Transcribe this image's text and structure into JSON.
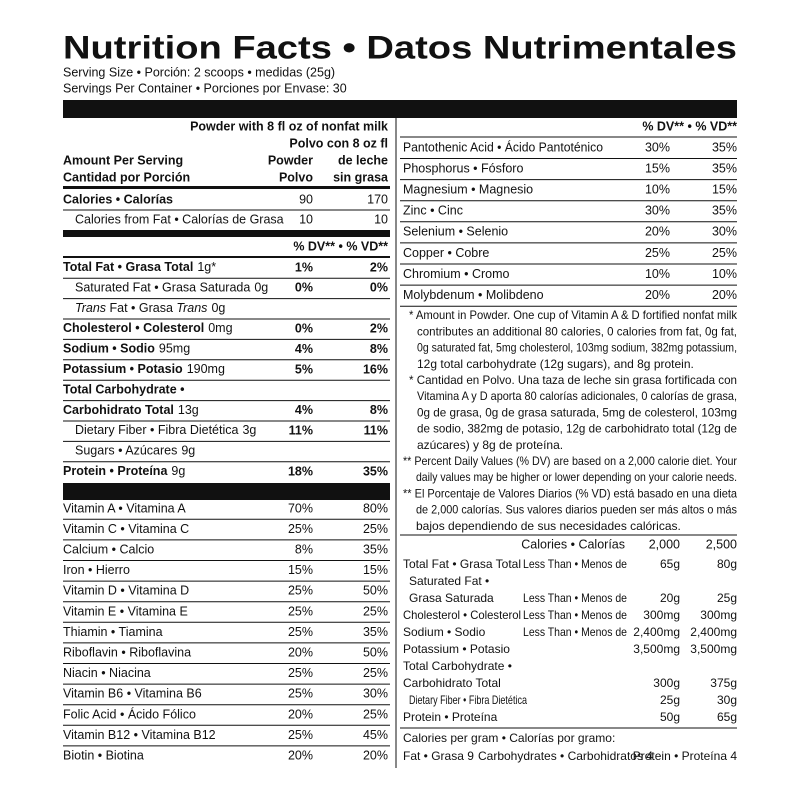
{
  "header": {
    "title": "Nutrition Facts • Datos Nutrimentales",
    "serving_size": "Serving Size • Porción: 2 scoops • medidas (25g)",
    "servings_per_container": "Servings Per Container • Porciones por Envase: 30"
  },
  "left": {
    "column_header": [
      "Powder with 8 fl oz of nonfat milk",
      "Polvo con 8 oz fl"
    ],
    "amount_label": [
      "Amount Per Serving",
      "Cantidad por Porción"
    ],
    "col1": [
      "Powder",
      "Polvo"
    ],
    "col2": [
      "de leche",
      "sin grasa"
    ],
    "calories": [
      {
        "label": "Calories • Calorías",
        "v1": "90",
        "v2": "170"
      },
      {
        "label": "Calories from Fat • Calorías de Grasa",
        "v1": "10",
        "v2": "10"
      }
    ],
    "dv_header": "% DV** • % VD**",
    "nutrients": [
      {
        "label": "Total Fat • Grasa Total",
        "amount": "1g*",
        "v1": "1%",
        "v2": "2%"
      },
      {
        "label": "Saturated Fat • Grasa Saturada",
        "amount": "0g",
        "v1": "0%",
        "v2": "0%"
      },
      {
        "label_parts": [
          "Trans",
          " Fat • Grasa ",
          "Trans"
        ],
        "amount": "0g"
      },
      {
        "label": "Cholesterol • Colesterol",
        "amount": "0mg",
        "v1": "0%",
        "v2": "2%"
      },
      {
        "label": "Sodium • Sodio",
        "amount": "95mg",
        "v1": "4%",
        "v2": "8%"
      },
      {
        "label": "Potassium • Potasio",
        "amount": "190mg",
        "v1": "5%",
        "v2": "16%"
      },
      {
        "label": [
          "Total Carbohydrate •",
          "Carbohidrato Total"
        ],
        "amount": "13g",
        "v1": "4%",
        "v2": "8%"
      },
      {
        "label": "Dietary Fiber • Fibra Dietética",
        "amount": "3g",
        "v1": "11%",
        "v2": "11%"
      },
      {
        "label": "Sugars • Azúcares",
        "amount": "9g"
      },
      {
        "label": "Protein • Proteína",
        "amount": "9g",
        "v1": "18%",
        "v2": "35%"
      }
    ],
    "vitamins": [
      {
        "label": "Vitamin A • Vitamina A",
        "v1": "70%",
        "v2": "80%"
      },
      {
        "label": "Vitamin C • Vitamina C",
        "v1": "25%",
        "v2": "25%"
      },
      {
        "label": "Calcium • Calcio",
        "v1": "8%",
        "v2": "35%"
      },
      {
        "label": "Iron • Hierro",
        "v1": "15%",
        "v2": "15%"
      },
      {
        "label": "Vitamin D • Vitamina D",
        "v1": "25%",
        "v2": "50%"
      },
      {
        "label": "Vitamin E • Vitamina E",
        "v1": "25%",
        "v2": "25%"
      },
      {
        "label": "Thiamin • Tiamina",
        "v1": "25%",
        "v2": "35%"
      },
      {
        "label": "Riboflavin • Riboflavina",
        "v1": "20%",
        "v2": "50%"
      },
      {
        "label": "Niacin • Niacina",
        "v1": "25%",
        "v2": "25%"
      },
      {
        "label": "Vitamin B6 • Vitamina B6",
        "v1": "25%",
        "v2": "30%"
      },
      {
        "label": "Folic Acid • Ácido Fólico",
        "v1": "20%",
        "v2": "25%"
      },
      {
        "label": "Vitamin B12 • Vitamina B12",
        "v1": "25%",
        "v2": "45%"
      },
      {
        "label": "Biotin • Biotina",
        "v1": "20%",
        "v2": "20%"
      }
    ]
  },
  "right": {
    "dv_header": "% DV** • % VD**",
    "minerals": [
      {
        "label": "Pantothenic Acid • Ácido Pantoténico",
        "v1": "30%",
        "v2": "35%"
      },
      {
        "label": "Phosphorus • Fósforo",
        "v1": "15%",
        "v2": "35%"
      },
      {
        "label": "Magnesium • Magnesio",
        "v1": "10%",
        "v2": "15%"
      },
      {
        "label": "Zinc • Cinc",
        "v1": "30%",
        "v2": "35%"
      },
      {
        "label": "Selenium • Selenio",
        "v1": "20%",
        "v2": "30%"
      },
      {
        "label": "Copper • Cobre",
        "v1": "25%",
        "v2": "25%"
      },
      {
        "label": "Chromium • Cromo",
        "v1": "10%",
        "v2": "10%"
      },
      {
        "label": "Molybdenum • Molibdeno",
        "v1": "20%",
        "v2": "20%"
      }
    ],
    "footnotes": [
      [
        "* Amount in Powder. One cup of Vitamin A & D fortified nonfat milk",
        "contributes an additional 80 calories, 0 calories from fat, 0g fat,",
        "0g saturated fat, 5mg cholesterol, 103mg sodium, 382mg potassium,",
        "12g total carbohydrate (12g sugars), and 8g protein."
      ],
      [
        "* Cantidad en Polvo. Una taza de leche sin grasa fortificada con",
        "Vitamina A y D aporta 80 calorías adicionales, 0 calorías de grasa,",
        "0g de grasa, 0g de grasa saturada, 5mg de colesterol, 103mg",
        "de sodio, 382mg de potasio, 12g de carbohidrato total (12g de",
        "azúcares) y 8g de proteína."
      ],
      [
        "** Percent Daily Values (% DV) are based on a 2,000 calorie diet. Your",
        "daily values may be higher or lower depending on your calorie needs."
      ],
      [
        "** El Porcentaje de Valores Diarios (% VD) está basado en una dieta",
        "de 2,000 calorías. Sus valores diarios pueden ser más altos o más",
        "bajos dependiendo de sus necesidades calóricas."
      ]
    ],
    "dv_table": {
      "header": {
        "label": "Calories • Calorías",
        "v1": "2,000",
        "v2": "2,500"
      },
      "rows": [
        {
          "label": [
            "Total Fat • Grasa Total"
          ],
          "cond": "Less Than • Menos de",
          "v1": "65g",
          "v2": "80g"
        },
        {
          "label": [
            "Saturated Fat •",
            "Grasa Saturada"
          ],
          "cond": "Less Than • Menos de",
          "v1": "20g",
          "v2": "25g"
        },
        {
          "label": [
            "Cholesterol • Colesterol"
          ],
          "cond": "Less Than • Menos de",
          "v1": "300mg",
          "v2": "300mg"
        },
        {
          "label": [
            "Sodium • Sodio"
          ],
          "cond": "Less Than • Menos de",
          "v1": "2,400mg",
          "v2": "2,400mg"
        },
        {
          "label": [
            "Potassium • Potasio"
          ],
          "v1": "3,500mg",
          "v2": "3,500mg"
        },
        {
          "label": [
            "Total Carbohydrate •",
            "Carbohidrato Total"
          ],
          "v1": "300g",
          "v2": "375g"
        },
        {
          "label": [
            "Dietary Fiber • Fibra Dietética"
          ],
          "v1": "25g",
          "v2": "30g"
        },
        {
          "label": [
            "Protein • Proteína"
          ],
          "v1": "50g",
          "v2": "65g"
        }
      ]
    },
    "calories_per_gram": {
      "label": "Calories per gram • Calorías por gramo:",
      "items": [
        "Fat • Grasa 9",
        "Carbohydrates • Carbohidratos 4",
        "Protein • Proteína 4"
      ]
    }
  }
}
